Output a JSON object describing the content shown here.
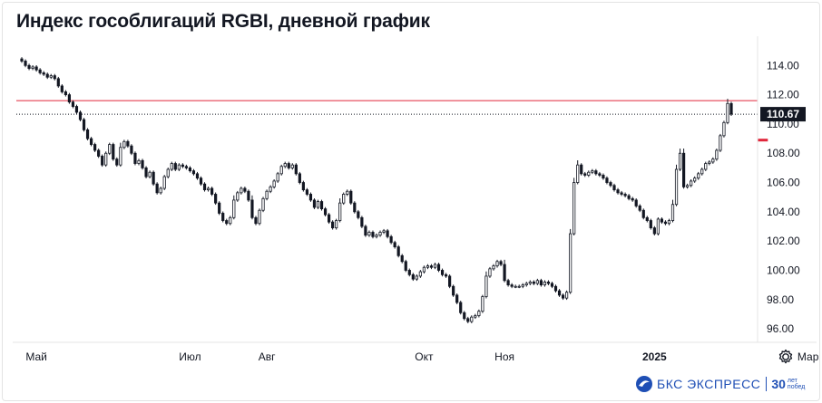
{
  "title": "Индекс гособлигаций RGBI, дневной график",
  "last_price_label": "110.67",
  "logo": {
    "brand": "БКС ЭКСПРЕСС",
    "years": "30",
    "years_caption": "лет побед"
  },
  "icons": {
    "settings": "gear-icon",
    "logo": "bks-logo-icon"
  },
  "colors": {
    "candle": "#131722",
    "resistance": "#e0263a",
    "support": "#e0263a",
    "price_line": "#131722"
  },
  "chart_data": {
    "type": "candlestick",
    "ylim": [
      95.2,
      116.0
    ],
    "yticks": [
      "114.00",
      "112.00",
      "110.00",
      "108.00",
      "106.00",
      "104.00",
      "102.00",
      "100.00",
      "98.00",
      "96.00"
    ],
    "xticks": [
      {
        "label": "Май",
        "bar": 4,
        "bold": false
      },
      {
        "label": "Июл",
        "bar": 46,
        "bold": false
      },
      {
        "label": "Авг",
        "bar": 67,
        "bold": false
      },
      {
        "label": "Окт",
        "bar": 110,
        "bold": false
      },
      {
        "label": "Ноя",
        "bar": 132,
        "bold": false
      },
      {
        "label": "2025",
        "bar": 173,
        "bold": true
      },
      {
        "label": "Мар",
        "bar": 215,
        "bold": false
      }
    ],
    "horizontal_lines": [
      {
        "y": 111.6,
        "x_from_bar": 0,
        "x_to_end": true,
        "color": "#e0263a",
        "width": 1
      },
      {
        "y": 108.9,
        "x_from_bar": 204,
        "x_to_end": true,
        "color": "#e0263a",
        "width": 3
      },
      {
        "y": 110.67,
        "x_from_bar": 0,
        "x_to_end": true,
        "color": "#131722",
        "width": 1,
        "dotted": true
      }
    ],
    "closes": [
      114.3,
      114.0,
      113.8,
      113.9,
      113.7,
      113.5,
      113.4,
      113.2,
      113.3,
      113.1,
      112.6,
      112.2,
      112.0,
      111.5,
      111.2,
      110.8,
      110.3,
      109.6,
      109.0,
      108.6,
      108.2,
      107.8,
      107.2,
      108.0,
      108.6,
      107.6,
      107.2,
      108.4,
      108.8,
      108.5,
      108.0,
      107.3,
      107.5,
      107.0,
      106.4,
      106.7,
      105.9,
      105.3,
      105.6,
      106.4,
      106.9,
      107.3,
      106.9,
      107.2,
      107.1,
      107.0,
      106.8,
      106.6,
      106.3,
      105.9,
      105.5,
      105.6,
      105.2,
      104.6,
      103.9,
      103.4,
      103.2,
      103.6,
      104.8,
      105.3,
      105.6,
      105.4,
      104.8,
      103.6,
      103.2,
      104.1,
      104.9,
      105.4,
      105.7,
      106.1,
      106.6,
      107.1,
      107.3,
      107.0,
      107.2,
      106.6,
      106.0,
      105.5,
      105.2,
      104.8,
      104.3,
      104.7,
      104.2,
      103.8,
      103.3,
      102.9,
      103.4,
      104.6,
      105.2,
      105.4,
      104.6,
      104.0,
      103.6,
      103.0,
      102.4,
      102.6,
      102.3,
      102.4,
      102.6,
      102.7,
      102.3,
      101.9,
      101.6,
      101.0,
      100.6,
      100.0,
      99.7,
      99.4,
      99.6,
      99.9,
      100.2,
      100.3,
      100.2,
      100.4,
      100.0,
      99.7,
      99.6,
      98.9,
      98.3,
      97.8,
      97.1,
      96.7,
      96.5,
      96.8,
      96.9,
      97.2,
      98.2,
      99.6,
      100.1,
      100.3,
      100.6,
      100.4,
      99.3,
      99.0,
      98.9,
      98.9,
      98.9,
      99.0,
      99.1,
      99.2,
      99.1,
      99.3,
      99.0,
      99.2,
      99.1,
      98.9,
      98.6,
      98.3,
      98.1,
      98.5,
      102.5,
      106.0,
      107.2,
      106.6,
      106.5,
      106.7,
      106.8,
      106.6,
      106.5,
      106.3,
      106.0,
      105.8,
      105.5,
      105.3,
      105.2,
      105.1,
      104.9,
      104.8,
      104.4,
      104.1,
      103.6,
      103.4,
      102.9,
      102.5,
      103.5,
      103.3,
      103.2,
      103.4,
      104.5,
      106.9,
      108.0,
      105.7,
      105.8,
      106.1,
      106.3,
      106.6,
      106.9,
      107.3,
      107.4,
      107.6,
      108.2,
      109.2,
      110.1,
      111.4,
      110.67
    ]
  }
}
